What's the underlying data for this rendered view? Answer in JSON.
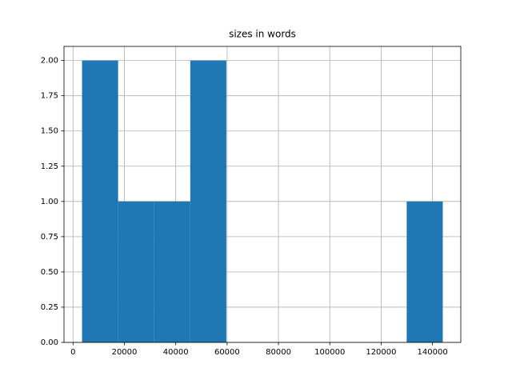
{
  "chart_data": {
    "type": "histogram",
    "title": "sizes in words",
    "bins": [
      3500,
      17550,
      31600,
      45650,
      59700,
      73750,
      87800,
      101850,
      115900,
      129950,
      144000
    ],
    "counts": [
      2,
      1,
      1,
      2,
      0,
      0,
      0,
      0,
      0,
      1
    ],
    "color": "#1f77b4",
    "xlim": [
      -3525,
      151025
    ],
    "xticks": [
      0,
      20000,
      40000,
      60000,
      80000,
      100000,
      120000,
      140000
    ],
    "ylim": [
      0,
      2.1
    ],
    "yticks": [
      {
        "value": 0,
        "label": "0.00"
      },
      {
        "value": 0.25,
        "label": "0.25"
      },
      {
        "value": 0.5,
        "label": "0.50"
      },
      {
        "value": 0.75,
        "label": "0.75"
      },
      {
        "value": 1,
        "label": "1.00"
      },
      {
        "value": 1.25,
        "label": "1.25"
      },
      {
        "value": 1.5,
        "label": "1.50"
      },
      {
        "value": 1.75,
        "label": "1.75"
      },
      {
        "value": 2,
        "label": "2.00"
      }
    ],
    "grid": true
  }
}
